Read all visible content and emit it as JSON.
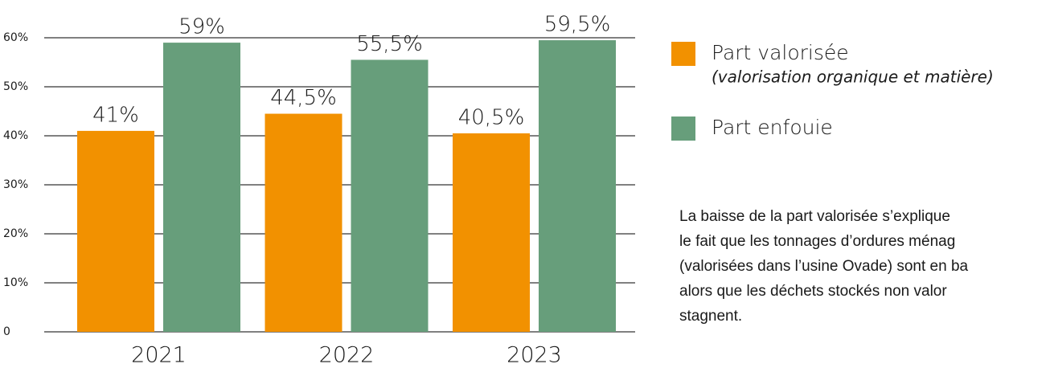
{
  "chart_data": {
    "type": "bar",
    "categories": [
      "2021",
      "2022",
      "2023"
    ],
    "series": [
      {
        "name": "Part valorisée",
        "color": "#f29100",
        "values": [
          41,
          44.5,
          40.5
        ],
        "value_labels": [
          "41%",
          "44,5%",
          "40,5%"
        ]
      },
      {
        "name": "Part enfouie",
        "color": "#679e7b",
        "values": [
          59,
          55.5,
          59.5
        ],
        "value_labels": [
          "59%",
          "55,5%",
          "59,5%"
        ]
      }
    ],
    "legend_subtitle": "(valorisation organique et matière)",
    "ylim": [
      0,
      60
    ],
    "yticks": [
      0,
      {
        "value": 10,
        "label": "10%"
      },
      {
        "value": 20,
        "label": "20%"
      },
      {
        "value": 30,
        "label": "30%"
      },
      {
        "value": 40,
        "label": "40%"
      },
      {
        "value": 50,
        "label": "50%"
      },
      {
        "value": 60,
        "label": "60%"
      }
    ],
    "grid": true,
    "legend": "right",
    "note_lines": [
      "La baisse de la part valorisée s’explique",
      "le fait que les tonnages d’ordures ménag",
      "(valorisées dans l’usine Ovade) sont en ba",
      "alors que les déchets stockés non valor",
      "stagnent."
    ]
  }
}
